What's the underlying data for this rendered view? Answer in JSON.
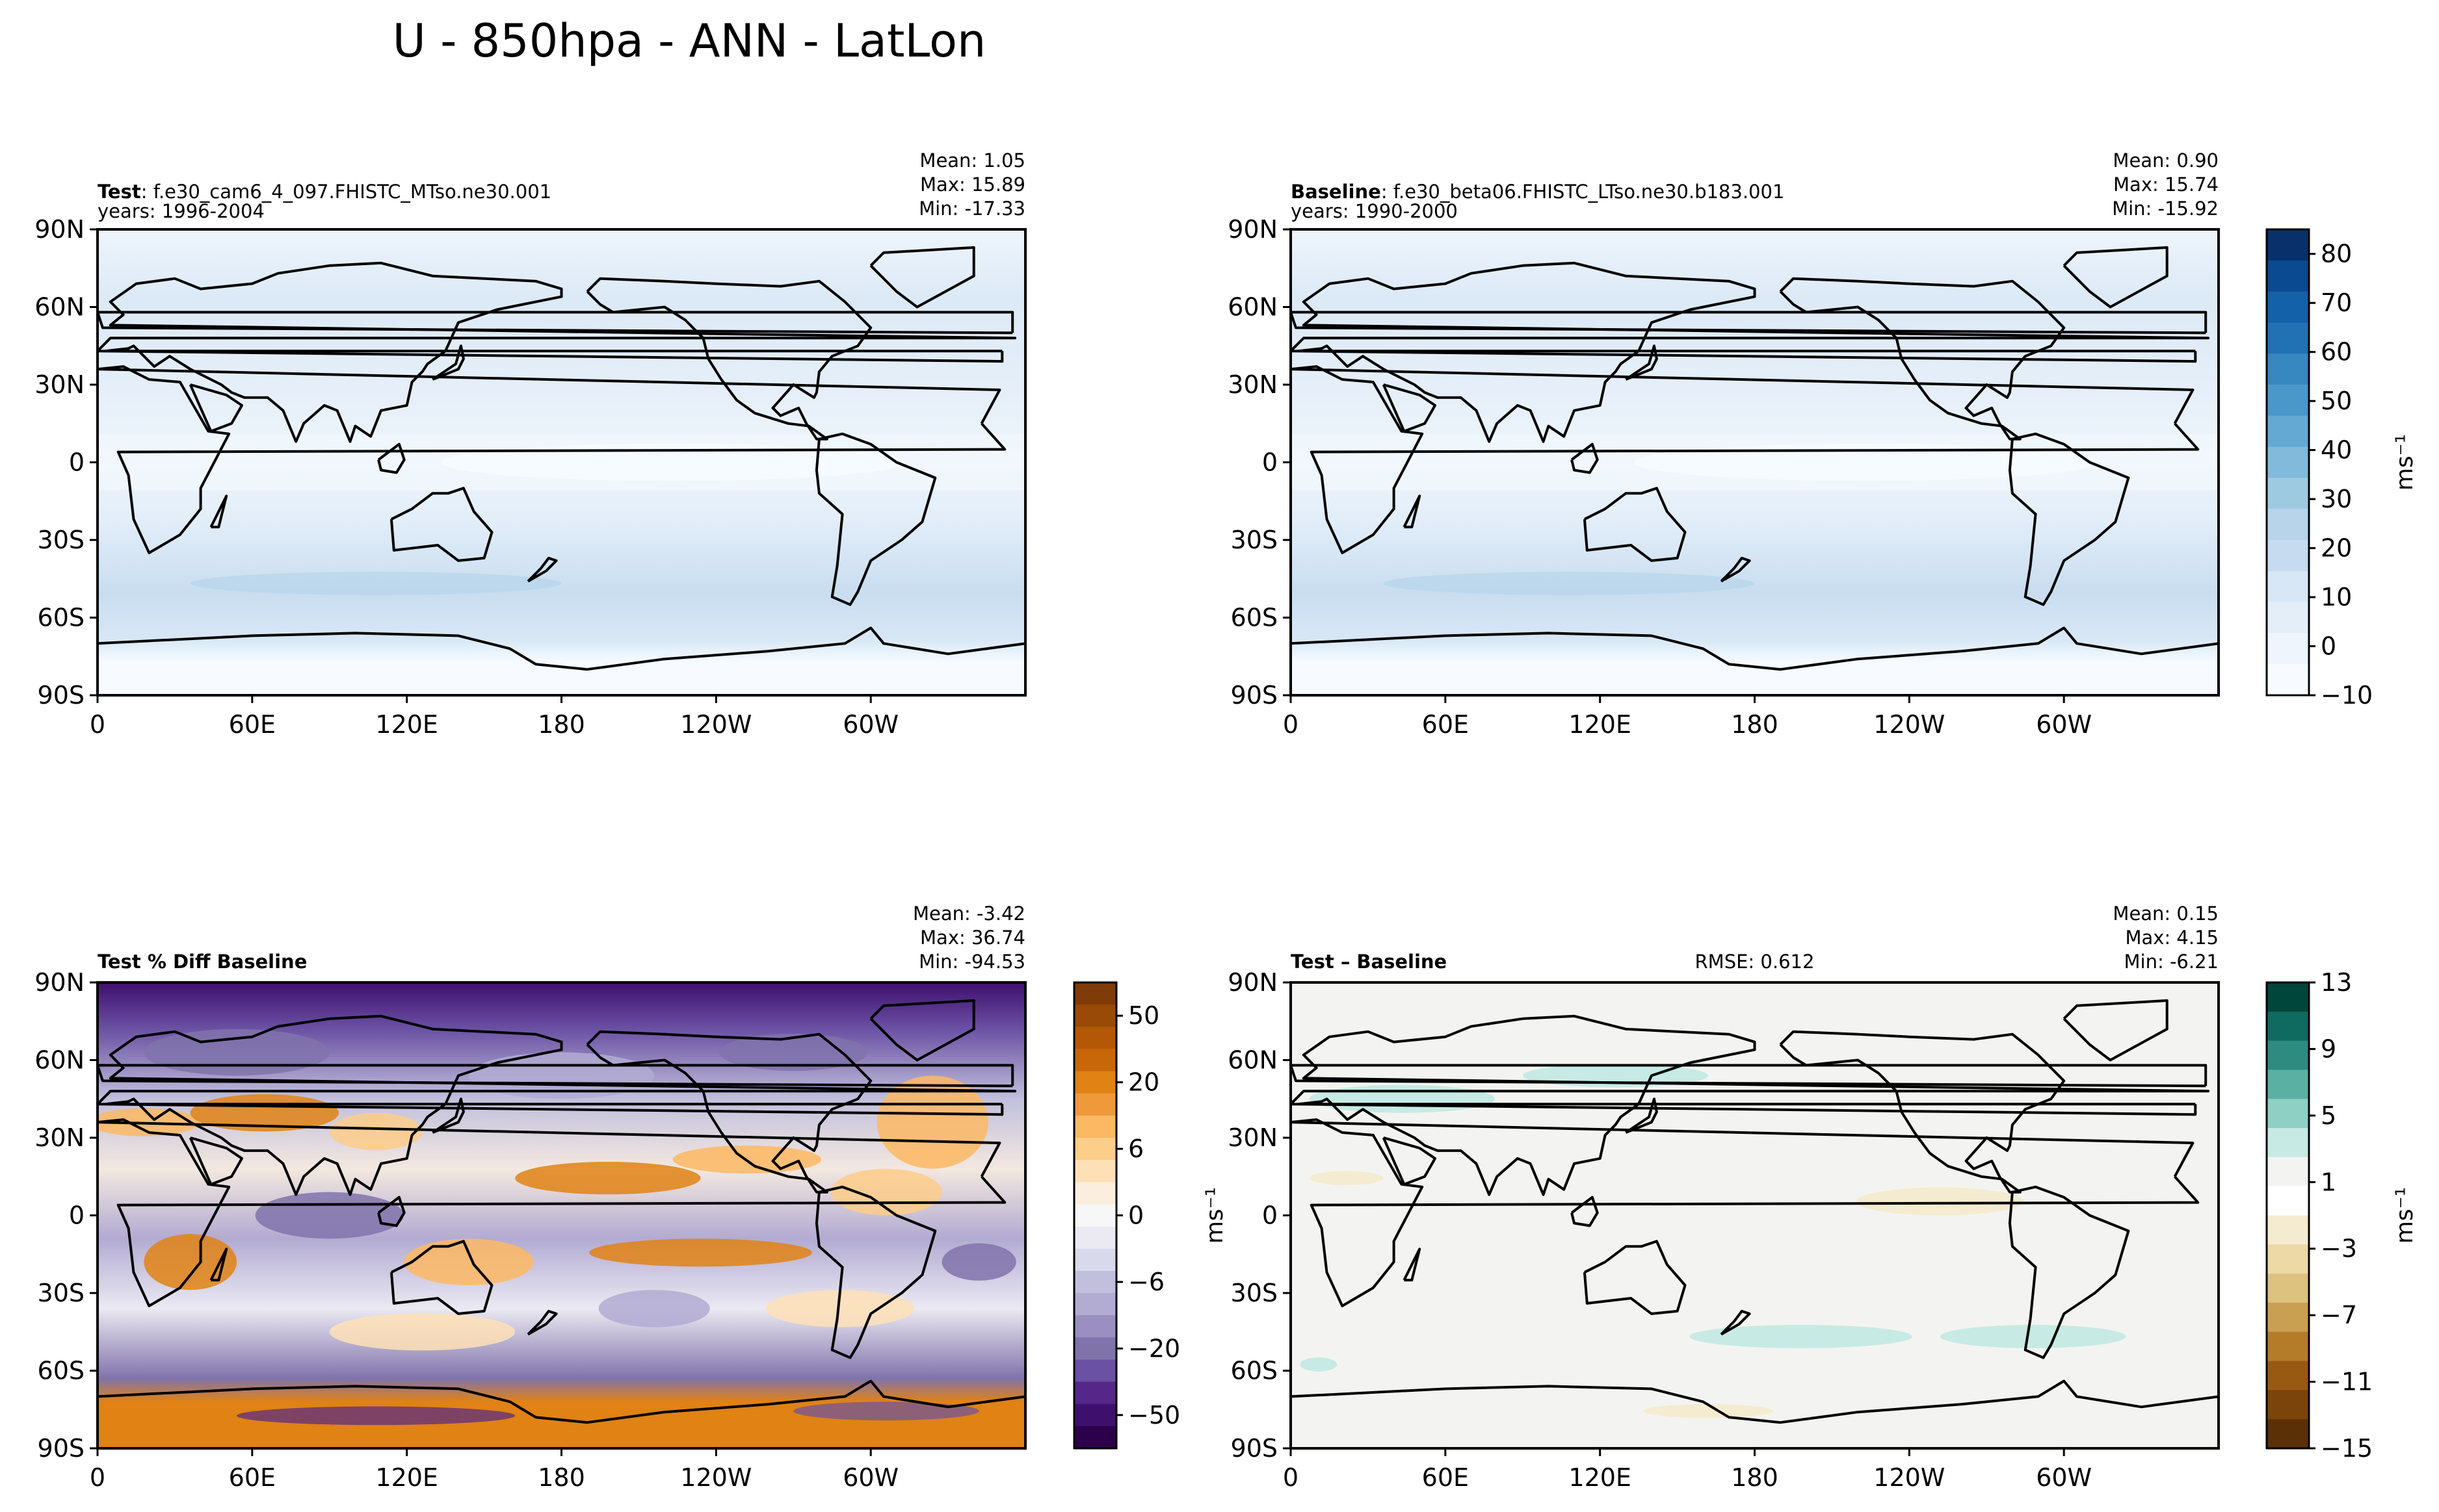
{
  "title": "U - 850hpa - ANN - LatLon",
  "lat_ticks": [
    "90N",
    "60N",
    "30N",
    "0",
    "30S",
    "60S",
    "90S"
  ],
  "lon_ticks": [
    "0",
    "60E",
    "120E",
    "180",
    "120W",
    "60W"
  ],
  "panels": [
    {
      "id": "test",
      "label_bold": "Test",
      "label_rest": ": f.e30_cam6_4_097.FHISTC_MTso.ne30.001",
      "years": "years: 1996-2004",
      "stats": [
        "Mean:  1.05",
        "Max: 15.89",
        "Min: -17.33"
      ],
      "rmse": ""
    },
    {
      "id": "baseline",
      "label_bold": "Baseline",
      "label_rest": ": f.e30_beta06.FHISTC_LTso.ne30.b183.001",
      "years": "years: 1990-2000",
      "stats": [
        "Mean:  0.90",
        "Max: 15.74",
        "Min: -15.92"
      ],
      "rmse": ""
    },
    {
      "id": "pct-diff",
      "label_bold": "Test % Diff Baseline",
      "label_rest": "",
      "years": "",
      "stats": [
        "Mean: -3.42",
        "Max: 36.74",
        "Min: -94.53"
      ],
      "rmse": ""
    },
    {
      "id": "diff",
      "label_bold": "Test – Baseline",
      "label_rest": "",
      "years": "",
      "stats": [
        "Mean:  0.15",
        "Max:  4.15",
        "Min: -6.21"
      ],
      "rmse": "RMSE: 0.612"
    }
  ],
  "colorbars": [
    {
      "id": "main",
      "unit": "ms⁻¹",
      "ticks": [
        "80",
        "70",
        "60",
        "50",
        "40",
        "30",
        "20",
        "10",
        "0",
        "−10"
      ],
      "colors": [
        "#08306b",
        "#0a4a90",
        "#1361a9",
        "#2171b5",
        "#3787c0",
        "#4a98c9",
        "#64a9d3",
        "#81badb",
        "#9ecae1",
        "#b7d4ea",
        "#c6dbef",
        "#d8e7f5",
        "#e3eef9",
        "#eef5fc",
        "#f7fbff"
      ]
    },
    {
      "id": "pct",
      "unit": "ms⁻¹",
      "ticks": [
        "50",
        "20",
        "6",
        "0",
        "−6",
        "−20",
        "−50"
      ],
      "colors": [
        "#7f3b08",
        "#9a4a07",
        "#b35806",
        "#c8670a",
        "#e08214",
        "#ee9a3b",
        "#fdb863",
        "#fdcd8a",
        "#fee0b6",
        "#fbeede",
        "#f7f7f7",
        "#ebe9f2",
        "#d8daeb",
        "#c1bfdc",
        "#b2abd2",
        "#9a8fc0",
        "#8073ac",
        "#6a51a3",
        "#542788",
        "#3f0f6e",
        "#2d004b"
      ]
    },
    {
      "id": "diff",
      "unit": "ms⁻¹",
      "ticks": [
        "13",
        "9",
        "5",
        "1",
        "−3",
        "−7",
        "−11",
        "−15"
      ],
      "colors": [
        "#01463b",
        "#0f6b5f",
        "#2c8c7f",
        "#5ab0a3",
        "#8fd0c4",
        "#c7eae4",
        "#f3f4f1",
        "#ffffff",
        "#f5ebd0",
        "#ecd9a6",
        "#ddc17f",
        "#c99f51",
        "#b47c29",
        "#985a13",
        "#7a440a",
        "#5a3006"
      ]
    }
  ]
}
